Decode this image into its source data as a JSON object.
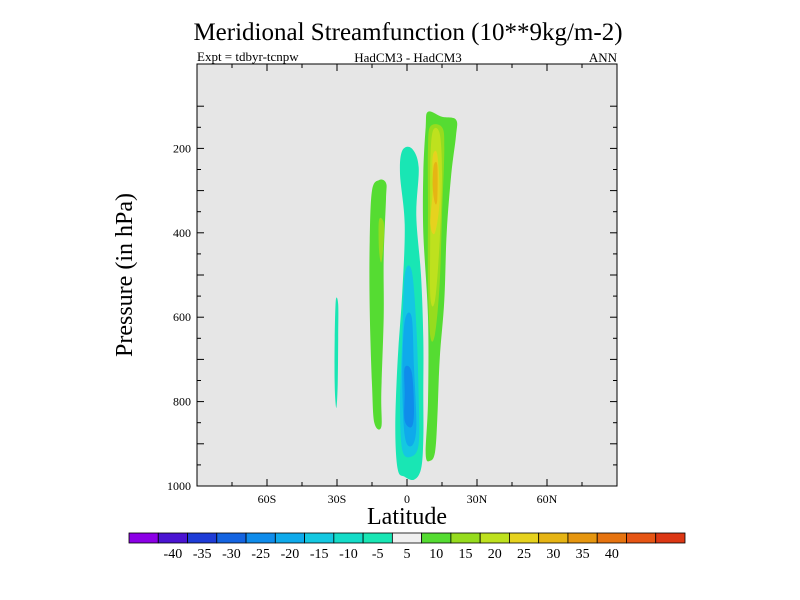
{
  "chart_data": {
    "type": "contour",
    "title": "Meridional Streamfunction (10**9kg/m-2)",
    "subtitle_left": "Expt = tdbyr-tcnpw",
    "subtitle_center": "HadCM3 - HadCM3",
    "subtitle_right": "ANN",
    "xlabel": "Latitude",
    "ylabel": "Pressure (in hPa)",
    "xlim": [
      -90,
      90
    ],
    "ylim": [
      1000,
      0
    ],
    "x_ticks": [
      {
        "value": -60,
        "label": "60S"
      },
      {
        "value": -30,
        "label": "30S"
      },
      {
        "value": 0,
        "label": "0"
      },
      {
        "value": 30,
        "label": "30N"
      },
      {
        "value": 60,
        "label": "60N"
      }
    ],
    "y_ticks": [
      {
        "value": 200,
        "label": "200"
      },
      {
        "value": 400,
        "label": "400"
      },
      {
        "value": 600,
        "label": "600"
      },
      {
        "value": 800,
        "label": "800"
      },
      {
        "value": 1000,
        "label": "1000"
      }
    ],
    "background_color": "#e6e6e6",
    "colorbar": {
      "labels": [
        "-40",
        "-35",
        "-30",
        "-25",
        "-20",
        "-15",
        "-10",
        "-5",
        "5",
        "10",
        "15",
        "20",
        "25",
        "30",
        "35",
        "40"
      ],
      "colors": [
        "#8c00e6",
        "#4b14d2",
        "#1e3cd7",
        "#1464e1",
        "#0f8ceb",
        "#0faaeb",
        "#14c8e1",
        "#14dcc8",
        "#19e6b4",
        "#f0f0f0",
        "#55dc32",
        "#96dc1e",
        "#bee11e",
        "#e6d21e",
        "#e6b414",
        "#e6960f",
        "#e6730f",
        "#e65514",
        "#dc3714"
      ]
    },
    "regions": [
      {
        "name": "tropical-negative-cell",
        "sign": "negative",
        "level": -5,
        "color": "#19e6b4",
        "outline": [
          [
            -2,
            205
          ],
          [
            2,
            200
          ],
          [
            5,
            245
          ],
          [
            4,
            360
          ],
          [
            6,
            500
          ],
          [
            7,
            650
          ],
          [
            7,
            780
          ],
          [
            7,
            890
          ],
          [
            6,
            960
          ],
          [
            3,
            985
          ],
          [
            -1,
            978
          ],
          [
            -4,
            960
          ],
          [
            -5,
            860
          ],
          [
            -4,
            700
          ],
          [
            -2,
            540
          ],
          [
            -1,
            380
          ],
          [
            -3,
            260
          ]
        ]
      },
      {
        "name": "tropical-negative-core-1",
        "sign": "negative",
        "level": -10,
        "color": "#14c8e1",
        "outline": [
          [
            -1,
            500
          ],
          [
            2,
            490
          ],
          [
            4,
            620
          ],
          [
            5,
            790
          ],
          [
            5,
            900
          ],
          [
            2,
            930
          ],
          [
            -2,
            915
          ],
          [
            -3,
            800
          ],
          [
            -2,
            650
          ]
        ]
      },
      {
        "name": "tropical-negative-core-2",
        "sign": "negative",
        "level": -15,
        "color": "#0faaeb",
        "outline": [
          [
            -1,
            610
          ],
          [
            2,
            600
          ],
          [
            3,
            720
          ],
          [
            4,
            860
          ],
          [
            2,
            905
          ],
          [
            -1,
            880
          ],
          [
            -2,
            740
          ]
        ]
      },
      {
        "name": "tropical-negative-core-3",
        "sign": "negative",
        "level": -20,
        "color": "#0f8ceb",
        "outline": [
          [
            -1,
            720
          ],
          [
            2,
            730
          ],
          [
            3,
            820
          ],
          [
            2,
            860
          ],
          [
            -1,
            845
          ],
          [
            -1,
            780
          ]
        ]
      },
      {
        "name": "nh-positive-cell",
        "sign": "positive",
        "level": 5,
        "color": "#55dc32",
        "outline": [
          [
            9,
            113
          ],
          [
            15,
            125
          ],
          [
            21,
            132
          ],
          [
            21,
            170
          ],
          [
            19,
            260
          ],
          [
            17,
            400
          ],
          [
            16,
            560
          ],
          [
            14,
            700
          ],
          [
            13,
            840
          ],
          [
            12,
            920
          ],
          [
            10,
            940
          ],
          [
            8,
            925
          ],
          [
            9,
            800
          ],
          [
            9,
            600
          ],
          [
            7,
            400
          ],
          [
            7,
            260
          ],
          [
            8,
            150
          ]
        ]
      },
      {
        "name": "nh-positive-core-1",
        "sign": "positive",
        "level": 10,
        "color": "#96dc1e",
        "outline": [
          [
            10,
            148
          ],
          [
            15,
            150
          ],
          [
            16,
            200
          ],
          [
            15,
            360
          ],
          [
            14,
            520
          ],
          [
            12,
            640
          ],
          [
            10,
            645
          ],
          [
            9,
            520
          ],
          [
            9,
            330
          ],
          [
            9,
            200
          ]
        ]
      },
      {
        "name": "nh-positive-core-2",
        "sign": "positive",
        "level": 15,
        "color": "#bee11e",
        "outline": [
          [
            11,
            160
          ],
          [
            14,
            165
          ],
          [
            15,
            260
          ],
          [
            14,
            420
          ],
          [
            12,
            560
          ],
          [
            10,
            550
          ],
          [
            10,
            380
          ],
          [
            10,
            240
          ]
        ]
      },
      {
        "name": "nh-positive-core-3",
        "sign": "positive",
        "level": 20,
        "color": "#e6d21e",
        "outline": [
          [
            11,
            220
          ],
          [
            13,
            215
          ],
          [
            14,
            320
          ],
          [
            12,
            400
          ],
          [
            10,
            380
          ],
          [
            11,
            300
          ]
        ]
      },
      {
        "name": "nh-positive-core-4",
        "sign": "positive",
        "level": 25,
        "color": "#e6b414",
        "outline": [
          [
            11.5,
            240
          ],
          [
            13,
            240
          ],
          [
            13,
            320
          ],
          [
            12,
            330
          ],
          [
            11,
            290
          ]
        ]
      },
      {
        "name": "sh-positive-cell",
        "sign": "positive",
        "level": 5,
        "color": "#55dc32",
        "outline": [
          [
            -12,
            275
          ],
          [
            -9,
            282
          ],
          [
            -9,
            320
          ],
          [
            -10,
            460
          ],
          [
            -10,
            600
          ],
          [
            -11,
            780
          ],
          [
            -11,
            860
          ],
          [
            -14,
            850
          ],
          [
            -15,
            760
          ],
          [
            -16,
            580
          ],
          [
            -16,
            420
          ],
          [
            -15,
            300
          ]
        ]
      },
      {
        "name": "sh-positive-core",
        "sign": "positive",
        "level": 10,
        "color": "#96dc1e",
        "outline": [
          [
            -12,
            370
          ],
          [
            -10,
            375
          ],
          [
            -10,
            420
          ],
          [
            -11,
            470
          ],
          [
            -12,
            440
          ]
        ]
      },
      {
        "name": "sh-small-negative-cell",
        "sign": "negative",
        "level": -5,
        "color": "#19e6b4",
        "outline": [
          [
            -30.5,
            560
          ],
          [
            -29.5,
            570
          ],
          [
            -29.5,
            650
          ],
          [
            -29.7,
            760
          ],
          [
            -30.3,
            815
          ],
          [
            -31,
            760
          ],
          [
            -31,
            650
          ]
        ]
      }
    ]
  }
}
